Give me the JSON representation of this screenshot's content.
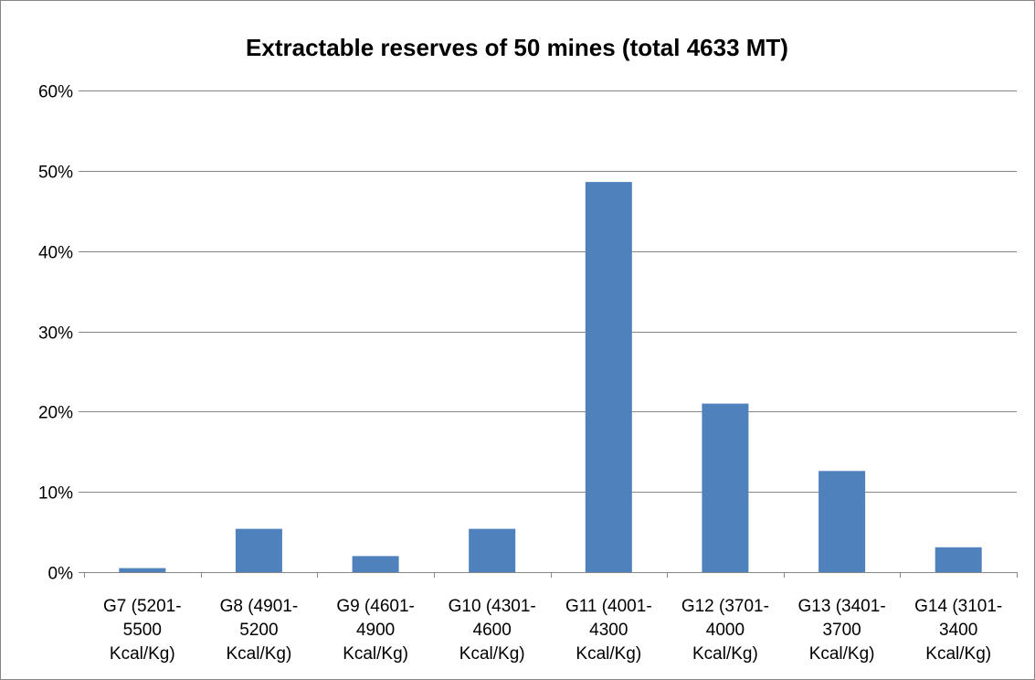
{
  "chart_data": {
    "type": "bar",
    "title": "Extractable reserves of 50 mines (total 4633 MT)",
    "xlabel": "",
    "ylabel": "",
    "categories": [
      [
        "G7 (5201-",
        "5500",
        "Kcal/Kg)"
      ],
      [
        "G8 (4901-",
        "5200",
        "Kcal/Kg)"
      ],
      [
        "G9 (4601-",
        "4900",
        "Kcal/Kg)"
      ],
      [
        "G10 (4301-",
        "4600",
        "Kcal/Kg)"
      ],
      [
        "G11 (4001-",
        "4300",
        "Kcal/Kg)"
      ],
      [
        "G12 (3701-",
        "4000",
        "Kcal/Kg)"
      ],
      [
        "G13 (3401-",
        "3700",
        "Kcal/Kg)"
      ],
      [
        "G14 (3101-",
        "3400",
        "Kcal/Kg)"
      ]
    ],
    "values": [
      0.5,
      5.4,
      2.0,
      5.4,
      48.6,
      21.0,
      12.6,
      3.1
    ],
    "value_unit": "%",
    "ylim": [
      0,
      60
    ],
    "yticks": [
      0,
      10,
      20,
      30,
      40,
      50,
      60
    ],
    "ytick_labels": [
      "0%",
      "10%",
      "20%",
      "30%",
      "40%",
      "50%",
      "60%"
    ],
    "grid": true,
    "legend": "none",
    "bar_color": "#4F81BD",
    "grid_color": "#868686"
  }
}
